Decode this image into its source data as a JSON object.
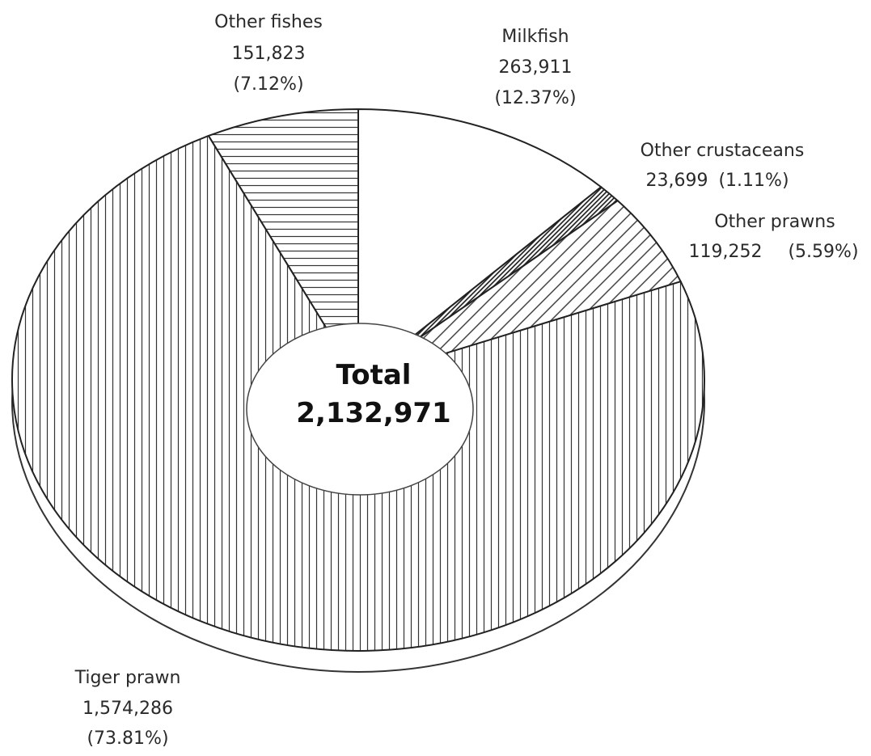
{
  "chart_data": {
    "type": "pie",
    "title": "",
    "center_label": "Total",
    "total": "2,132,971",
    "slices": [
      {
        "name": "Milkfish",
        "value": 263911,
        "value_label": "263,911",
        "percent_label": "(12.37%)",
        "pattern": "none"
      },
      {
        "name": "Other crustaceans",
        "value": 23699,
        "value_label": "23,699",
        "percent_label": "(1.11%)",
        "pattern": "dense-diagonal"
      },
      {
        "name": "Other prawns",
        "value": 119252,
        "value_label": "119,252",
        "percent_label": "(5.59%)",
        "pattern": "diagonal"
      },
      {
        "name": "Tiger prawn",
        "value": 1574286,
        "value_label": "1,574,286",
        "percent_label": "(73.81%)",
        "pattern": "vertical"
      },
      {
        "name": "Other fishes",
        "value": 151823,
        "value_label": "151,823",
        "percent_label": "(7.12%)",
        "pattern": "horizontal"
      }
    ]
  }
}
